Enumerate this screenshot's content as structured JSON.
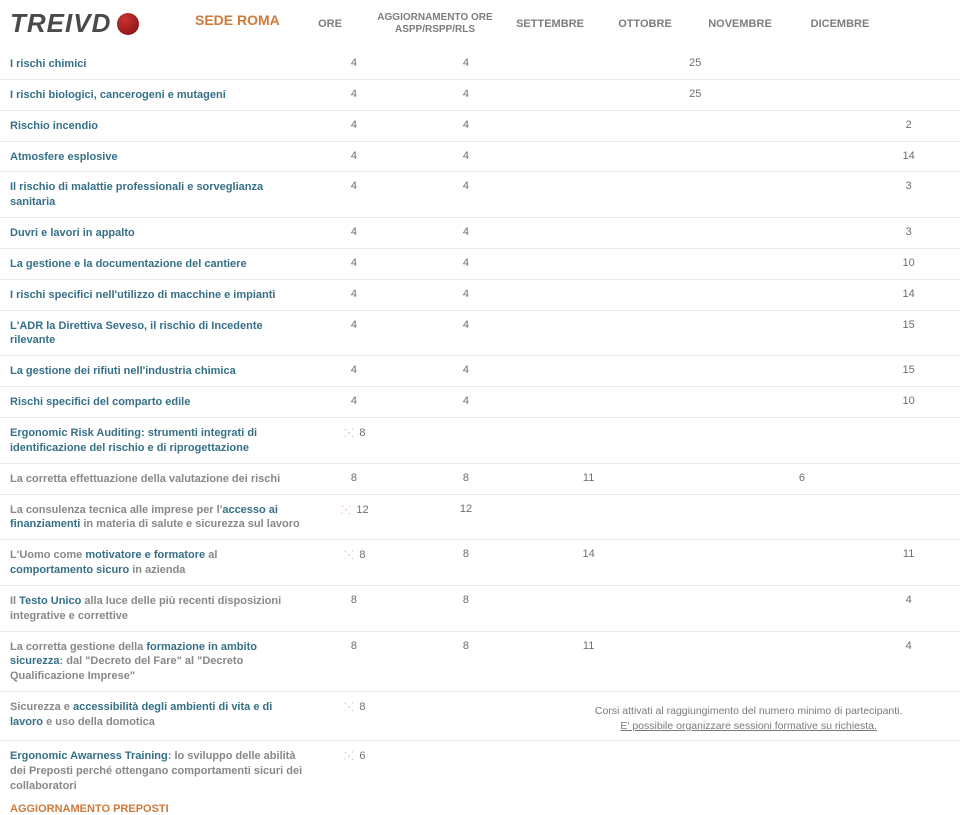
{
  "logo": {
    "text": "TREIVD"
  },
  "headers": {
    "sede": "SEDE ROMA",
    "ore": "ORE",
    "aggiorn": "AGGIORNAMENTO ORE ASPP/RSPP/RLS",
    "m1": "SETTEMBRE",
    "m2": "OTTOBRE",
    "m3": "NOVEMBRE",
    "m4": "DICEMBRE"
  },
  "rows": [
    {
      "title": "I rischi chimici",
      "ore": "4",
      "agg": "4",
      "s": "",
      "o": "25",
      "n": "",
      "d": ""
    },
    {
      "title": "I rischi biologici, cancerogeni e mutageni",
      "ore": "4",
      "agg": "4",
      "s": "",
      "o": "25",
      "n": "",
      "d": ""
    },
    {
      "title": "Rischio incendio",
      "ore": "4",
      "agg": "4",
      "s": "",
      "o": "",
      "n": "",
      "d": "2"
    },
    {
      "title": "Atmosfere esplosive",
      "ore": "4",
      "agg": "4",
      "s": "",
      "o": "",
      "n": "",
      "d": "14"
    },
    {
      "title": "Il rischio di malattie professionali e sorveglianza sanitaria",
      "ore": "4",
      "agg": "4",
      "s": "",
      "o": "",
      "n": "",
      "d": "3"
    },
    {
      "title": "Duvri e lavori in appalto",
      "ore": "4",
      "agg": "4",
      "s": "",
      "o": "",
      "n": "",
      "d": "3"
    },
    {
      "title": "La gestione e la documentazione del cantiere",
      "ore": "4",
      "agg": "4",
      "s": "",
      "o": "",
      "n": "",
      "d": "10"
    },
    {
      "title": "I rischi specifici nell'utilizzo di macchine e impianti",
      "ore": "4",
      "agg": "4",
      "s": "",
      "o": "",
      "n": "",
      "d": "14"
    },
    {
      "title": "L'ADR la Direttiva Seveso, il rischio di Incedente rilevante",
      "ore": "4",
      "agg": "4",
      "s": "",
      "o": "",
      "n": "",
      "d": "15"
    },
    {
      "title": "La gestione dei rifiuti nell'industria chimica",
      "ore": "4",
      "agg": "4",
      "s": "",
      "o": "",
      "n": "",
      "d": "15"
    },
    {
      "title": "Rischi specifici del comparto edile",
      "ore": "4",
      "agg": "4",
      "s": "",
      "o": "",
      "n": "",
      "d": "10"
    },
    {
      "title": "Ergonomic Risk Auditing: strumenti integrati di identificazione del rischio e di riprogettazione",
      "icon": true,
      "ore": "8",
      "agg": "",
      "s": "",
      "o": "",
      "n": "",
      "d": ""
    },
    {
      "title": "La corretta effettuazione della valutazione dei rischi",
      "grey": true,
      "ore": "8",
      "agg": "8",
      "s": "11",
      "o": "",
      "n": "6",
      "d": ""
    },
    {
      "title_html": "La consulenza tecnica alle imprese per l'<b>accesso ai finanziamenti</b> in materia di salute e sicurezza sul lavoro",
      "mix": true,
      "icon": true,
      "ore": "12",
      "agg": "12",
      "s": "",
      "o": "",
      "n": "",
      "d": ""
    },
    {
      "title_html": "L'Uomo come <b>motivatore e formatore</b> al <b>comportamento sicuro</b> in azienda",
      "mix": true,
      "icon": true,
      "ore": "8",
      "agg": "8",
      "s": "14",
      "o": "",
      "n": "",
      "d": "11"
    },
    {
      "title_html": "Il <b>Testo Unico</b> alla luce delle più recenti disposizioni integrative e correttive",
      "mix": true,
      "ore": "8",
      "agg": "8",
      "s": "",
      "o": "",
      "n": "",
      "d": "4"
    },
    {
      "title_html": "La corretta gestione della <b>formazione in ambito sicurezza</b>: dal \"Decreto del Fare\" al \"Decreto Qualificazione Imprese\"",
      "mix": true,
      "ore": "8",
      "agg": "8",
      "s": "11",
      "o": "",
      "n": "",
      "d": "4"
    },
    {
      "title_html": "Sicurezza e <b>accessibilità degli ambienti di vita e di lavoro</b> e uso della domotica",
      "mix": true,
      "icon": true,
      "ore": "8",
      "agg": "",
      "note": true
    },
    {
      "title_html": "<b>Ergonomic Awarness Training</b>: lo sviluppo delle abilità dei Preposti perché ottengano comportamenti sicuri dei collaboratori",
      "mix": true,
      "icon": true,
      "ore": "6",
      "agg": "",
      "last": true
    }
  ],
  "note": {
    "line1": "Corsi  attivati al raggiungimento del numero minimo di partecipanti.",
    "line2": "E' possibile organizzare sessioni formative su richiesta."
  },
  "footer_label": "AGGIORNAMENTO PREPOSTI"
}
